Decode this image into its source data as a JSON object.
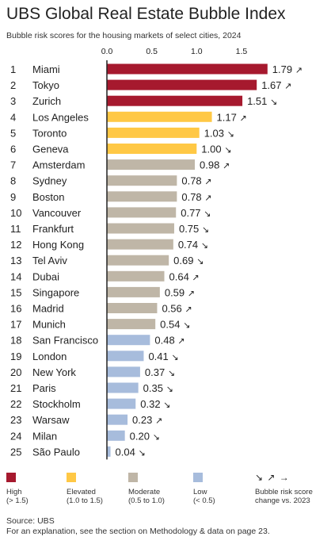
{
  "header": {
    "title": "UBS Global Real Estate Bubble Index",
    "subtitle": "Bubble risk scores for the housing markets of select cities, 2024"
  },
  "colors": {
    "high": "#a6192e",
    "elevated": "#ffc845",
    "moderate": "#bfb6a7",
    "low": "#a7bcdc"
  },
  "chart_data": {
    "type": "bar",
    "orientation": "horizontal",
    "title": "UBS Global Real Estate Bubble Index",
    "subtitle": "Bubble risk scores for the housing markets of select cities, 2024",
    "xlim": [
      0,
      1.8
    ],
    "xticks": [
      "0.0",
      "0.5",
      "1.0",
      "1.5"
    ],
    "xtick_values": [
      0,
      0.5,
      1.0,
      1.5
    ],
    "grid": false,
    "legend_position": "bottom",
    "rows": [
      {
        "rank": "1",
        "city": "Miami",
        "value": 1.79,
        "label": "1.79",
        "trend": "↗",
        "category": "high"
      },
      {
        "rank": "2",
        "city": "Tokyo",
        "value": 1.67,
        "label": "1.67",
        "trend": "↗",
        "category": "high"
      },
      {
        "rank": "3",
        "city": "Zurich",
        "value": 1.51,
        "label": "1.51",
        "trend": "↘",
        "category": "high"
      },
      {
        "rank": "4",
        "city": "Los Angeles",
        "value": 1.17,
        "label": "1.17",
        "trend": "↗",
        "category": "elevated"
      },
      {
        "rank": "5",
        "city": "Toronto",
        "value": 1.03,
        "label": "1.03",
        "trend": "↘",
        "category": "elevated"
      },
      {
        "rank": "6",
        "city": "Geneva",
        "value": 1.0,
        "label": "1.00",
        "trend": "↘",
        "category": "elevated"
      },
      {
        "rank": "7",
        "city": "Amsterdam",
        "value": 0.98,
        "label": "0.98",
        "trend": "↗",
        "category": "moderate"
      },
      {
        "rank": "8",
        "city": "Sydney",
        "value": 0.78,
        "label": "0.78",
        "trend": "↗",
        "category": "moderate"
      },
      {
        "rank": "9",
        "city": "Boston",
        "value": 0.78,
        "label": "0.78",
        "trend": "↗",
        "category": "moderate"
      },
      {
        "rank": "10",
        "city": "Vancouver",
        "value": 0.77,
        "label": "0.77",
        "trend": "↘",
        "category": "moderate"
      },
      {
        "rank": "11",
        "city": "Frankfurt",
        "value": 0.75,
        "label": "0.75",
        "trend": "↘",
        "category": "moderate"
      },
      {
        "rank": "12",
        "city": "Hong Kong",
        "value": 0.74,
        "label": "0.74",
        "trend": "↘",
        "category": "moderate"
      },
      {
        "rank": "13",
        "city": "Tel Aviv",
        "value": 0.69,
        "label": "0.69",
        "trend": "↘",
        "category": "moderate"
      },
      {
        "rank": "14",
        "city": "Dubai",
        "value": 0.64,
        "label": "0.64",
        "trend": "↗",
        "category": "moderate"
      },
      {
        "rank": "15",
        "city": "Singapore",
        "value": 0.59,
        "label": "0.59",
        "trend": "↗",
        "category": "moderate"
      },
      {
        "rank": "16",
        "city": "Madrid",
        "value": 0.56,
        "label": "0.56",
        "trend": "↗",
        "category": "moderate"
      },
      {
        "rank": "17",
        "city": "Munich",
        "value": 0.54,
        "label": "0.54",
        "trend": "↘",
        "category": "moderate"
      },
      {
        "rank": "18",
        "city": "San Francisco",
        "value": 0.48,
        "label": "0.48",
        "trend": "↗",
        "category": "low"
      },
      {
        "rank": "19",
        "city": "London",
        "value": 0.41,
        "label": "0.41",
        "trend": "↘",
        "category": "low"
      },
      {
        "rank": "20",
        "city": "New York",
        "value": 0.37,
        "label": "0.37",
        "trend": "↘",
        "category": "low"
      },
      {
        "rank": "21",
        "city": "Paris",
        "value": 0.35,
        "label": "0.35",
        "trend": "↘",
        "category": "low"
      },
      {
        "rank": "22",
        "city": "Stockholm",
        "value": 0.32,
        "label": "0.32",
        "trend": "↘",
        "category": "low"
      },
      {
        "rank": "23",
        "city": "Warsaw",
        "value": 0.23,
        "label": "0.23",
        "trend": "↗",
        "category": "low"
      },
      {
        "rank": "24",
        "city": "Milan",
        "value": 0.2,
        "label": "0.20",
        "trend": "↘",
        "category": "low"
      },
      {
        "rank": "25",
        "city": "São Paulo",
        "value": 0.04,
        "label": "0.04",
        "trend": "↘",
        "category": "low"
      }
    ]
  },
  "legend": {
    "high": {
      "label": "High",
      "range": "(> 1.5)"
    },
    "elevated": {
      "label": "Elevated",
      "range": "(1.0 to 1.5)"
    },
    "moderate": {
      "label": "Moderate",
      "range": "(0.5 to 1.0)"
    },
    "low": {
      "label": "Low",
      "range": "(< 0.5)"
    },
    "trend": {
      "symbols": "↘ ↗ →",
      "line1": "Bubble risk score",
      "line2": "change vs. 2023"
    }
  },
  "footer": {
    "source": "Source: UBS",
    "note": "For an explanation, see the section on Methodology & data on page 23."
  }
}
